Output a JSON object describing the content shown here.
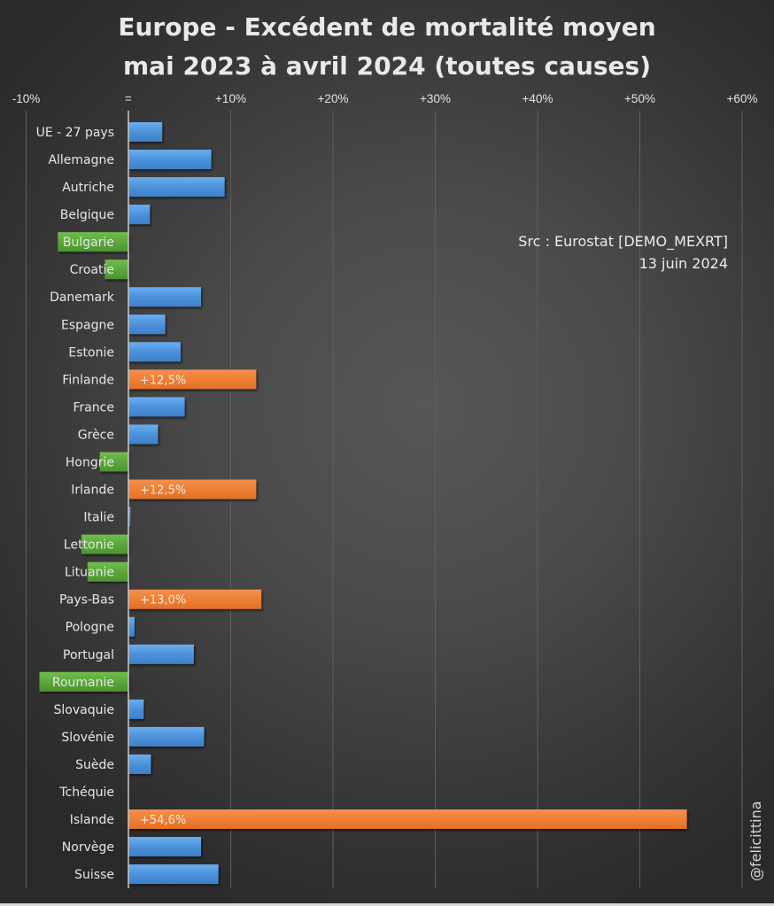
{
  "chart_data": {
    "type": "bar",
    "orientation": "horizontal",
    "title_line1": "Europe - Excédent de mortalité moyen",
    "title_line2": "mai 2023 à avril 2024 (toutes causes)",
    "xlabel": "",
    "ylabel": "",
    "xlim": [
      -10,
      60
    ],
    "x_ticks": [
      {
        "value": -10,
        "label": "-10%"
      },
      {
        "value": 0,
        "label": "="
      },
      {
        "value": 10,
        "label": "+10%"
      },
      {
        "value": 20,
        "label": "+20%"
      },
      {
        "value": 30,
        "label": "+30%"
      },
      {
        "value": 40,
        "label": "+40%"
      },
      {
        "value": 50,
        "label": "+50%"
      },
      {
        "value": 60,
        "label": "+60%"
      }
    ],
    "grid": true,
    "unit": "%",
    "categories": [
      "UE - 27 pays",
      "Allemagne",
      "Autriche",
      "Belgique",
      "Bulgarie",
      "Croatie",
      "Danemark",
      "Espagne",
      "Estonie",
      "Finlande",
      "France",
      "Grèce",
      "Hongrie",
      "Irlande",
      "Italie",
      "Lettonie",
      "Lituanie",
      "Pays-Bas",
      "Pologne",
      "Portugal",
      "Roumanie",
      "Slovaquie",
      "Slovénie",
      "Suède",
      "Tchéquie",
      "Islande",
      "Norvège",
      "Suisse"
    ],
    "values": [
      3.3,
      8.1,
      9.4,
      2.1,
      -6.9,
      -2.3,
      7.1,
      3.6,
      5.1,
      12.5,
      5.5,
      2.9,
      -2.8,
      12.5,
      0.2,
      -4.6,
      -4.0,
      13.0,
      0.6,
      6.4,
      -8.7,
      1.5,
      7.4,
      2.2,
      0.0,
      54.6,
      7.1,
      8.8
    ],
    "data_labels": {
      "Finlande": "+12,5%",
      "Irlande": "+12,5%",
      "Pays-Bas": "+13,0%",
      "Islande": "+54,6%"
    },
    "color_rules": {
      "positive": "#4f93dc",
      "negative": "#5aa53a",
      "highlight_over_10": "#ed7d31"
    },
    "annotations": {
      "source_line1": "Src : Eurostat [DEMO_MEXRT]",
      "source_line2": "13 juin 2024",
      "signature": "@felicittina"
    }
  },
  "colors": {
    "title": "#e9e9e9",
    "axis_line": "#c8c8c8",
    "gridline": "#5f5f5f"
  }
}
